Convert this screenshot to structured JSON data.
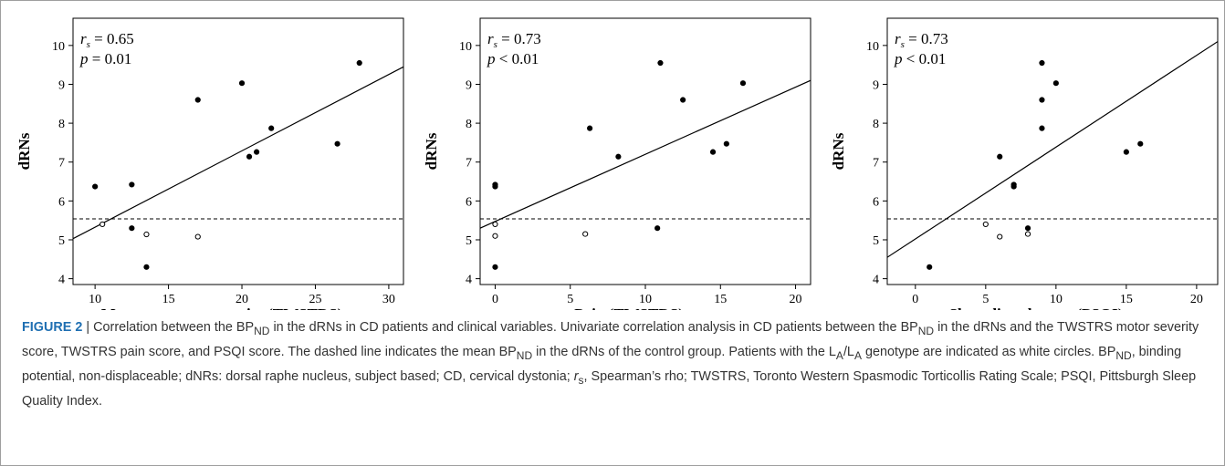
{
  "chart_data": [
    {
      "type": "scatter",
      "xlabel": "Motor symptom severity (TWSTRS)",
      "ylabel": "dRNs",
      "xlim": [
        8.5,
        31
      ],
      "ylim": [
        3.85,
        10.7
      ],
      "xticks": [
        10,
        15,
        20,
        25,
        30
      ],
      "yticks": [
        4,
        5,
        6,
        7,
        8,
        9,
        10
      ],
      "stat_rs_symbol": "r",
      "stat_rs_sub": "s",
      "stat_rs_value": "= 0.65",
      "stat_p_symbol": "p",
      "stat_p_value": "= 0.01",
      "points_filled": [
        [
          10,
          6.37
        ],
        [
          12.5,
          6.42
        ],
        [
          12.5,
          5.3
        ],
        [
          13.5,
          4.3
        ],
        [
          17,
          8.6
        ],
        [
          20,
          9.03
        ],
        [
          20.5,
          7.14
        ],
        [
          21,
          7.26
        ],
        [
          22,
          7.87
        ],
        [
          26.5,
          7.47
        ],
        [
          28,
          9.55
        ]
      ],
      "points_open": [
        [
          10.5,
          5.4
        ],
        [
          13.5,
          5.14
        ],
        [
          17,
          5.08
        ]
      ],
      "fit_line": [
        [
          8.5,
          5.03
        ],
        [
          31,
          9.45
        ]
      ],
      "reference_line_y": 5.54
    },
    {
      "type": "scatter",
      "xlabel": "Pain (TWSTRS)",
      "ylabel": "dRNs",
      "xlim": [
        -1,
        21
      ],
      "ylim": [
        3.85,
        10.7
      ],
      "xticks": [
        0,
        5,
        10,
        15,
        20
      ],
      "yticks": [
        4,
        5,
        6,
        7,
        8,
        9,
        10
      ],
      "stat_rs_symbol": "r",
      "stat_rs_sub": "s",
      "stat_rs_value": "= 0.73",
      "stat_p_symbol": "p",
      "stat_p_value": "< 0.01",
      "points_filled": [
        [
          0,
          6.37
        ],
        [
          0,
          6.42
        ],
        [
          0,
          4.3
        ],
        [
          6.3,
          7.87
        ],
        [
          8.2,
          7.14
        ],
        [
          10.8,
          5.3
        ],
        [
          11,
          9.55
        ],
        [
          12.5,
          8.6
        ],
        [
          14.5,
          7.26
        ],
        [
          15.4,
          7.47
        ],
        [
          16.5,
          9.03
        ]
      ],
      "points_open": [
        [
          0,
          5.4
        ],
        [
          0,
          5.1
        ],
        [
          6,
          5.15
        ]
      ],
      "fit_line": [
        [
          -1,
          5.3
        ],
        [
          21,
          9.1
        ]
      ],
      "reference_line_y": 5.54
    },
    {
      "type": "scatter",
      "xlabel": "Sleep disturbances (PSQI)",
      "ylabel": "dRNs",
      "xlim": [
        -2,
        21.5
      ],
      "ylim": [
        3.85,
        10.7
      ],
      "xticks": [
        0,
        5,
        10,
        15,
        20
      ],
      "yticks": [
        4,
        5,
        6,
        7,
        8,
        9,
        10
      ],
      "stat_rs_symbol": "r",
      "stat_rs_sub": "s",
      "stat_rs_value": "= 0.73",
      "stat_p_symbol": "p",
      "stat_p_value": "< 0.01",
      "points_filled": [
        [
          1,
          4.3
        ],
        [
          6,
          7.14
        ],
        [
          7,
          6.37
        ],
        [
          7,
          6.42
        ],
        [
          8,
          5.3
        ],
        [
          9,
          9.55
        ],
        [
          9,
          8.6
        ],
        [
          9,
          7.87
        ],
        [
          10,
          9.03
        ],
        [
          15,
          7.26
        ],
        [
          16,
          7.47
        ]
      ],
      "points_open": [
        [
          5,
          5.4
        ],
        [
          6,
          5.08
        ],
        [
          8,
          5.15
        ]
      ],
      "fit_line": [
        [
          -2,
          4.55
        ],
        [
          21.5,
          10.1
        ]
      ],
      "reference_line_y": 5.54
    }
  ],
  "caption": {
    "figure_label": "FIGURE 2",
    "separator": " | ",
    "text": "Correlation between the BP<sub>ND</sub> in the dRNs in CD patients and clinical variables. Univariate correlation analysis in CD patients between the BP<sub>ND</sub> in the dRNs and the TWSTRS motor severity score, TWSTRS pain score, and PSQI score. The dashed line indicates the mean BP<sub>ND</sub> in the dRNs of the control group. Patients with the L<sub>A</sub>/L<sub>A</sub> genotype are indicated as white circles. BP<sub>ND</sub>, binding potential, non-displaceable; dNRs: dorsal raphe nucleus, subject based; CD, cervical dystonia; <i>r</i><sub>s</sub>, Spearman’s rho; TWSTRS, Toronto Western Spasmodic Torticollis Rating Scale; PSQI, Pittsburgh Sleep Quality Index."
  }
}
